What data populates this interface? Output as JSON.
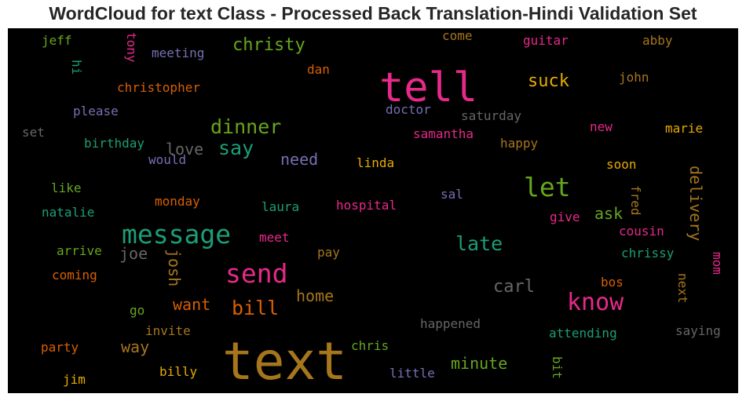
{
  "chart_data": {
    "type": "wordcloud",
    "title": "WordCloud for text Class - Processed Back Translation-Hindi Validation Set",
    "background": "#000000",
    "colormap": [
      "#d95f02",
      "#7570b3",
      "#e7298a",
      "#66a61e",
      "#e6ab02",
      "#a6761d",
      "#666666",
      "#1b9e77"
    ],
    "words": [
      {
        "text": "text",
        "color": "#a6761d"
      },
      {
        "text": "tell",
        "color": "#e7298a"
      },
      {
        "text": "message",
        "color": "#1b9e77"
      },
      {
        "text": "send",
        "color": "#e7298a"
      },
      {
        "text": "know",
        "color": "#e7298a"
      },
      {
        "text": "let",
        "color": "#66a61e"
      },
      {
        "text": "dinner",
        "color": "#66a61e"
      },
      {
        "text": "bill",
        "color": "#d95f02"
      },
      {
        "text": "say",
        "color": "#1b9e77"
      },
      {
        "text": "late",
        "color": "#1b9e77"
      },
      {
        "text": "christy",
        "color": "#66a61e"
      },
      {
        "text": "suck",
        "color": "#e6ab02"
      },
      {
        "text": "delivery",
        "color": "#a6761d"
      },
      {
        "text": "josh",
        "color": "#a6761d"
      },
      {
        "text": "want",
        "color": "#d95f02"
      },
      {
        "text": "carl",
        "color": "#666666"
      },
      {
        "text": "minute",
        "color": "#66a61e"
      },
      {
        "text": "home",
        "color": "#a6761d"
      },
      {
        "text": "need",
        "color": "#7570b3"
      },
      {
        "text": "love",
        "color": "#666666"
      },
      {
        "text": "way",
        "color": "#a6761d"
      },
      {
        "text": "ask",
        "color": "#66a61e"
      },
      {
        "text": "joe",
        "color": "#666666"
      },
      {
        "text": "christopher",
        "color": "#d95f02"
      },
      {
        "text": "meeting",
        "color": "#7570b3"
      },
      {
        "text": "jeff",
        "color": "#66a61e"
      },
      {
        "text": "hi",
        "color": "#1b9e77"
      },
      {
        "text": "tony",
        "color": "#e7298a"
      },
      {
        "text": "dan",
        "color": "#d95f02"
      },
      {
        "text": "come",
        "color": "#a6761d"
      },
      {
        "text": "guitar",
        "color": "#e7298a"
      },
      {
        "text": "abby",
        "color": "#a6761d"
      },
      {
        "text": "john",
        "color": "#a6761d"
      },
      {
        "text": "please",
        "color": "#7570b3"
      },
      {
        "text": "doctor",
        "color": "#7570b3"
      },
      {
        "text": "saturday",
        "color": "#666666"
      },
      {
        "text": "set",
        "color": "#666666"
      },
      {
        "text": "birthday",
        "color": "#1b9e77"
      },
      {
        "text": "samantha",
        "color": "#e7298a"
      },
      {
        "text": "happy",
        "color": "#a6761d"
      },
      {
        "text": "new",
        "color": "#e7298a"
      },
      {
        "text": "marie",
        "color": "#e6ab02"
      },
      {
        "text": "would",
        "color": "#7570b3"
      },
      {
        "text": "linda",
        "color": "#e6ab02"
      },
      {
        "text": "soon",
        "color": "#e6ab02"
      },
      {
        "text": "like",
        "color": "#66a61e"
      },
      {
        "text": "sal",
        "color": "#7570b3"
      },
      {
        "text": "fred",
        "color": "#a6761d"
      },
      {
        "text": "natalie",
        "color": "#1b9e77"
      },
      {
        "text": "monday",
        "color": "#d95f02"
      },
      {
        "text": "laura",
        "color": "#1b9e77"
      },
      {
        "text": "hospital",
        "color": "#e7298a"
      },
      {
        "text": "give",
        "color": "#e7298a"
      },
      {
        "text": "cousin",
        "color": "#e7298a"
      },
      {
        "text": "arrive",
        "color": "#66a61e"
      },
      {
        "text": "meet",
        "color": "#e7298a"
      },
      {
        "text": "pay",
        "color": "#a6761d"
      },
      {
        "text": "chrissy",
        "color": "#1b9e77"
      },
      {
        "text": "mom",
        "color": "#e7298a"
      },
      {
        "text": "coming",
        "color": "#d95f02"
      },
      {
        "text": "bos",
        "color": "#d95f02"
      },
      {
        "text": "next",
        "color": "#a6761d"
      },
      {
        "text": "go",
        "color": "#66a61e"
      },
      {
        "text": "invite",
        "color": "#a6761d"
      },
      {
        "text": "happened",
        "color": "#666666"
      },
      {
        "text": "attending",
        "color": "#1b9e77"
      },
      {
        "text": "saying",
        "color": "#666666"
      },
      {
        "text": "party",
        "color": "#d95f02"
      },
      {
        "text": "chris",
        "color": "#66a61e"
      },
      {
        "text": "bit",
        "color": "#66a61e"
      },
      {
        "text": "jim",
        "color": "#e6ab02"
      },
      {
        "text": "billy",
        "color": "#e6ab02"
      },
      {
        "text": "little",
        "color": "#7570b3"
      }
    ]
  }
}
